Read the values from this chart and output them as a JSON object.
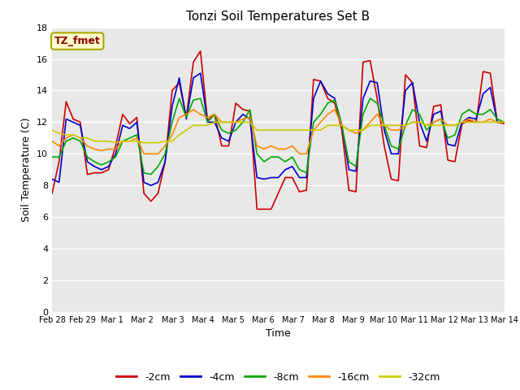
{
  "title": "Tonzi Soil Temperatures Set B",
  "xlabel": "Time",
  "ylabel": "Soil Temperature (C)",
  "ylim": [
    0,
    18
  ],
  "yticks": [
    0,
    2,
    4,
    6,
    8,
    10,
    12,
    14,
    16,
    18
  ],
  "fig_bg_color": "#ffffff",
  "plot_bg_color": "#e8e8e8",
  "grid_color": "#ffffff",
  "annotation_text": "TZ_fmet",
  "annotation_color": "#8b0000",
  "annotation_bg": "#ffffcc",
  "annotation_border": "#aaa800",
  "series_colors": [
    "#cc0000",
    "#0000cc",
    "#00aa00",
    "#ff8800",
    "#cccc00"
  ],
  "series_labels": [
    "-2cm",
    "-4cm",
    "-8cm",
    "-16cm",
    "-32cm"
  ],
  "x_tick_labels": [
    "Feb 28",
    "Feb 29",
    "Mar 1",
    "Mar 2",
    "Mar 3",
    "Mar 4",
    "Mar 5",
    "Mar 6",
    "Mar 7",
    "Mar 8",
    "Mar 9",
    "Mar 10",
    "Mar 11",
    "Mar 12",
    "Mar 13",
    "Mar 14"
  ],
  "data_2cm": [
    7.5,
    9.5,
    13.3,
    12.2,
    12.0,
    8.7,
    8.8,
    8.8,
    9.0,
    10.5,
    12.5,
    11.9,
    12.3,
    7.5,
    7.0,
    7.5,
    9.5,
    14.0,
    14.5,
    12.3,
    15.8,
    16.5,
    12.1,
    12.5,
    10.5,
    10.5,
    13.2,
    12.8,
    12.7,
    6.5,
    6.5,
    6.5,
    7.5,
    8.5,
    8.5,
    7.6,
    7.7,
    14.7,
    14.6,
    13.5,
    13.2,
    11.5,
    7.7,
    7.6,
    15.8,
    15.9,
    13.5,
    10.5,
    8.4,
    8.3,
    15.0,
    14.5,
    10.5,
    10.4,
    13.0,
    13.1,
    9.6,
    9.5,
    11.9,
    12.1,
    12.0,
    15.2,
    15.1,
    12.0,
    11.9
  ],
  "data_4cm": [
    8.4,
    8.2,
    12.2,
    12.0,
    11.8,
    9.5,
    9.2,
    9.0,
    9.2,
    10.0,
    11.8,
    11.6,
    12.0,
    8.2,
    8.0,
    8.2,
    9.5,
    13.0,
    14.8,
    12.2,
    14.8,
    15.1,
    12.0,
    12.0,
    11.0,
    10.8,
    12.0,
    12.5,
    12.2,
    8.5,
    8.4,
    8.5,
    8.5,
    9.0,
    9.2,
    8.5,
    8.5,
    13.5,
    14.6,
    13.8,
    13.5,
    11.8,
    9.0,
    8.9,
    13.5,
    14.6,
    14.5,
    11.5,
    10.0,
    10.0,
    14.0,
    14.5,
    12.0,
    10.8,
    12.5,
    12.7,
    10.6,
    10.5,
    12.0,
    12.3,
    12.2,
    13.8,
    14.2,
    12.0,
    12.0
  ],
  "data_8cm": [
    9.8,
    9.8,
    10.8,
    11.0,
    10.8,
    9.8,
    9.5,
    9.3,
    9.5,
    9.8,
    10.8,
    11.0,
    11.2,
    8.8,
    8.7,
    9.2,
    10.0,
    12.0,
    13.5,
    12.3,
    13.4,
    13.5,
    12.0,
    12.5,
    11.5,
    11.3,
    11.5,
    12.0,
    12.8,
    10.0,
    9.5,
    9.8,
    9.8,
    9.5,
    9.8,
    9.0,
    8.8,
    12.0,
    12.5,
    13.2,
    13.4,
    11.8,
    9.5,
    9.2,
    12.5,
    13.5,
    13.2,
    11.8,
    10.5,
    10.3,
    11.8,
    12.8,
    12.5,
    11.5,
    12.0,
    12.2,
    11.0,
    11.2,
    12.5,
    12.8,
    12.5,
    12.5,
    12.8,
    12.2,
    12.0
  ],
  "data_16cm": [
    10.8,
    10.5,
    11.0,
    11.2,
    11.0,
    10.5,
    10.3,
    10.2,
    10.3,
    10.3,
    10.8,
    10.8,
    11.0,
    10.0,
    10.0,
    10.0,
    10.5,
    11.2,
    12.3,
    12.5,
    12.8,
    12.5,
    12.3,
    12.5,
    12.0,
    12.0,
    12.0,
    12.2,
    12.3,
    10.5,
    10.3,
    10.5,
    10.3,
    10.3,
    10.5,
    10.0,
    10.0,
    11.5,
    12.0,
    12.5,
    12.8,
    11.8,
    11.5,
    11.3,
    11.5,
    12.0,
    12.5,
    11.8,
    11.5,
    11.5,
    11.8,
    12.0,
    12.0,
    11.8,
    12.0,
    12.2,
    11.8,
    11.8,
    12.0,
    12.2,
    12.0,
    12.0,
    12.2,
    12.0,
    12.0
  ],
  "data_32cm": [
    11.5,
    11.3,
    11.2,
    11.2,
    11.0,
    11.0,
    10.8,
    10.8,
    10.8,
    10.7,
    10.8,
    10.8,
    10.8,
    10.7,
    10.7,
    10.7,
    10.8,
    10.8,
    11.2,
    11.5,
    11.8,
    11.8,
    11.8,
    12.0,
    12.0,
    12.0,
    12.0,
    12.0,
    12.0,
    11.5,
    11.5,
    11.5,
    11.5,
    11.5,
    11.5,
    11.5,
    11.5,
    11.5,
    11.5,
    11.8,
    11.8,
    11.8,
    11.5,
    11.5,
    11.5,
    11.8,
    11.8,
    11.8,
    11.8,
    11.8,
    11.8,
    12.0,
    12.0,
    11.8,
    11.8,
    11.8,
    11.8,
    11.8,
    12.0,
    12.0,
    12.0,
    12.0,
    12.0,
    12.0,
    12.0
  ]
}
